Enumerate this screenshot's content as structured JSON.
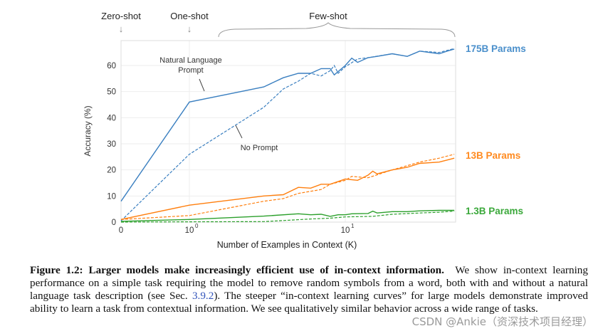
{
  "chart_data": {
    "type": "line",
    "xlabel": "Number of Examples in Context  (K)",
    "ylabel": "Accuracy (%)",
    "x_scale": "log (with 0 shown at left)",
    "xlim": [
      0,
      50
    ],
    "ylim": [
      0,
      70
    ],
    "x_ticks": [
      "0",
      "10^0",
      "10^1"
    ],
    "y_ticks": [
      0,
      10,
      20,
      30,
      40,
      50,
      60
    ],
    "grid": true,
    "top_labels": {
      "zero": "Zero-shot",
      "one": "One-shot",
      "few": "Few-shot"
    },
    "annotations": {
      "nl": "Natural Language",
      "nl2": "Prompt",
      "np": "No Prompt"
    },
    "series": [
      {
        "name": "175B Params",
        "color": "#3a7fc0",
        "style": "solid",
        "prompt": "Natural Language Prompt",
        "x": [
          0,
          1,
          3,
          4,
          5,
          6,
          7,
          8,
          8.5,
          10,
          11,
          12,
          14,
          16,
          20,
          25,
          30,
          40,
          45,
          50
        ],
        "y": [
          8,
          46,
          51.8,
          55.3,
          57,
          57,
          58.8,
          58.8,
          56.4,
          60,
          62.8,
          61.2,
          63,
          63.5,
          64.5,
          63.5,
          65.5,
          64.5,
          65.5,
          66.3
        ]
      },
      {
        "name": "175B Params",
        "color": "#3a7fc0",
        "style": "dashed",
        "prompt": "No Prompt",
        "x": [
          0,
          1,
          3,
          4,
          5,
          6,
          7,
          8,
          8.5,
          9,
          10,
          12,
          14,
          20,
          25,
          30,
          40,
          50
        ],
        "y": [
          0.5,
          26,
          44,
          51,
          54,
          57,
          56,
          58,
          60,
          57,
          59.5,
          62.5,
          63,
          64.5,
          63.5,
          65.5,
          65,
          66.5
        ]
      },
      {
        "name": "13B Params",
        "color": "#ff7f0e",
        "style": "solid",
        "prompt": "Natural Language Prompt",
        "x": [
          0,
          1,
          3,
          4,
          5,
          6,
          7,
          8,
          10,
          12,
          14,
          15,
          16,
          20,
          25,
          30,
          40,
          50
        ],
        "y": [
          1,
          6.5,
          10,
          10.5,
          13.3,
          13,
          14.5,
          14.5,
          16.5,
          16,
          18,
          19.5,
          18.5,
          20,
          21,
          22.5,
          23,
          24.5
        ]
      },
      {
        "name": "13B Params",
        "color": "#ff7f0e",
        "style": "dashed",
        "prompt": "No Prompt",
        "x": [
          0,
          1,
          3,
          4,
          5,
          7,
          8,
          10,
          11,
          14,
          20,
          30,
          40,
          50
        ],
        "y": [
          1,
          2.5,
          8,
          9,
          11,
          12.5,
          14.5,
          16,
          17.5,
          17,
          20,
          23,
          24.5,
          26
        ]
      },
      {
        "name": "1.3B Params",
        "color": "#2ca02c",
        "style": "solid",
        "prompt": "Natural Language Prompt",
        "x": [
          0,
          1,
          3,
          5,
          6,
          7,
          8,
          9,
          10,
          11,
          14,
          15,
          16,
          20,
          25,
          30,
          40,
          50
        ],
        "y": [
          0.3,
          1,
          2.3,
          3.2,
          2.8,
          3,
          2.2,
          2.8,
          2.8,
          3.2,
          3.3,
          4.2,
          3.5,
          4,
          4,
          4.3,
          4.5,
          4.5
        ]
      },
      {
        "name": "1.3B Params",
        "color": "#2ca02c",
        "style": "dashed",
        "prompt": "No Prompt",
        "x": [
          0,
          1,
          3,
          4,
          6,
          8,
          10,
          15,
          20,
          30,
          40,
          50
        ],
        "y": [
          0,
          0.1,
          0.2,
          0.6,
          1.2,
          1.5,
          2,
          2.2,
          3,
          3.5,
          3.8,
          4.2
        ]
      }
    ],
    "legend_labels": [
      "175B Params",
      "13B Params",
      "1.3B Params"
    ]
  },
  "caption": {
    "label": "Figure 1.2:",
    "bold": "Larger models make increasingly efficient use of in-context information.",
    "text1": "We show in-context learning performance on a simple task requiring the model to remove random symbols from a word, both with and without a natural language task description (see Sec.",
    "ref": "3.9.2",
    "text2": "). The steeper “in-context learning curves” for large models demonstrate improved ability to learn a task from contextual information. We see qualitatively similar behavior across a wide range of tasks."
  },
  "watermark": "CSDN @Ankie（资深技术项目经理）"
}
